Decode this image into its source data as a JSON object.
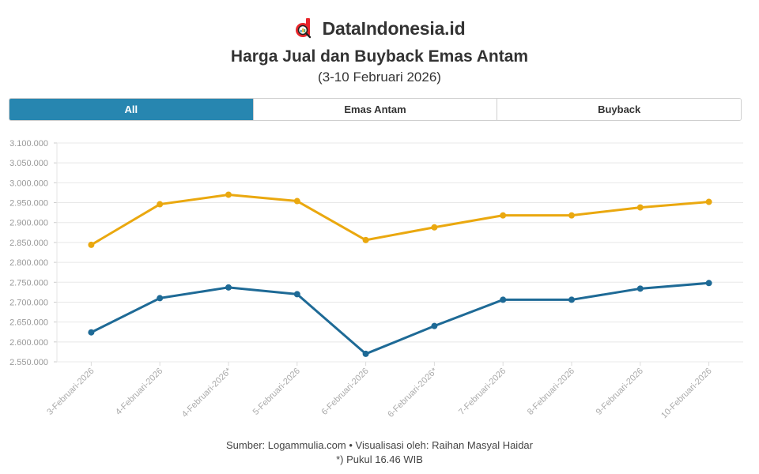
{
  "header": {
    "brand": "DataIndonesia.id",
    "title": "Harga Jual dan Buyback Emas Antam",
    "subtitle": "(3-10 Februari 2026)"
  },
  "tabs": [
    {
      "label": "All",
      "active": true
    },
    {
      "label": "Emas Antam",
      "active": false
    },
    {
      "label": "Buyback",
      "active": false
    }
  ],
  "colors": {
    "brand_red": "#e8262b",
    "tab_active": "#2786b0",
    "emas_antam": "#eaa80f",
    "buyback": "#1e6a96",
    "grid": "#e8e8e8",
    "axis_text": "#999999"
  },
  "footer": {
    "source": "Sumber: Logammulia.com • Visualisasi oleh: Raihan Masyal Haidar",
    "note": "*) Pukul 16.46 WIB"
  },
  "chart_data": {
    "type": "line",
    "title": "Harga Jual dan Buyback Emas Antam",
    "subtitle": "(3-10 Februari 2026)",
    "xlabel": "",
    "ylabel": "",
    "ylim": [
      2550000,
      3100000
    ],
    "yticks": [
      "3.100.000",
      "3.050.000",
      "3.000.000",
      "2.950.000",
      "2.900.000",
      "2.850.000",
      "2.800.000",
      "2.750.000",
      "2.700.000",
      "2.650.000",
      "2.600.000",
      "2.550.000"
    ],
    "grid": true,
    "legend": "tabs-top",
    "categories": [
      "3-Februari-2026",
      "4-Februari-2026",
      "4-Februari-2026*",
      "5-Februari-2026",
      "6-Februari-2026",
      "6-Februari-2026*",
      "7-Februari-2026",
      "8-Februari-2026",
      "9-Februari-2026",
      "10-Februari-2026"
    ],
    "series": [
      {
        "name": "Emas Antam",
        "color": "#eaa80f",
        "values": [
          2844000,
          2946000,
          2970000,
          2954000,
          2856000,
          2888000,
          2918000,
          2918000,
          2938000,
          2952000
        ]
      },
      {
        "name": "Buyback",
        "color": "#1e6a96",
        "values": [
          2624000,
          2710000,
          2737000,
          2720000,
          2570000,
          2640000,
          2706000,
          2706000,
          2734000,
          2748000
        ]
      }
    ]
  }
}
